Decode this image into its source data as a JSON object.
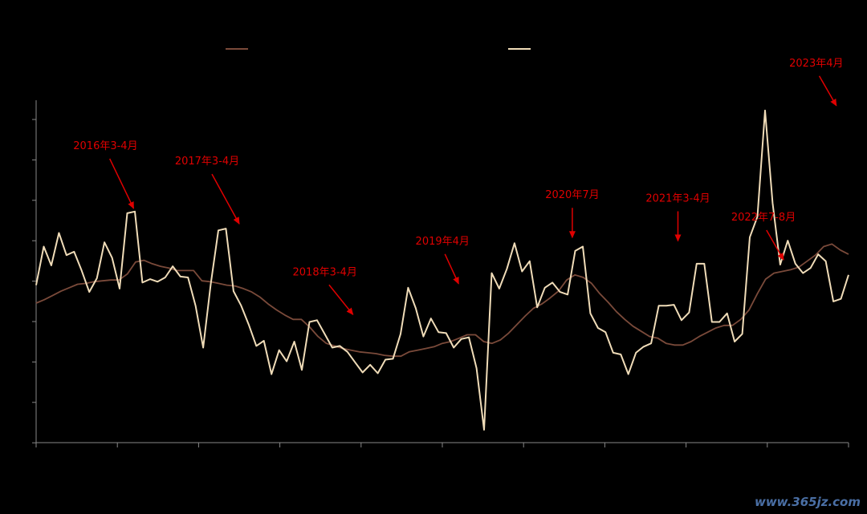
{
  "chart_data": {
    "type": "line",
    "title": "",
    "xlabel": "",
    "ylabel": "",
    "grid": false,
    "legend_position": "top",
    "xlim": [
      0,
      100
    ],
    "ylim": [
      0,
      100
    ],
    "series": [
      {
        "color": "#7a4a3a",
        "values": [
          40.75,
          41.75,
          43.0,
          44.25,
          45.25,
          46.25,
          46.5,
          47.0,
          47.25,
          47.5,
          47.5,
          49.25,
          52.75,
          53.25,
          52.25,
          51.5,
          51.0,
          50.25,
          50.25,
          50.25,
          47.25,
          47.0,
          46.5,
          46.0,
          45.75,
          45.0,
          44.0,
          42.5,
          40.5,
          38.75,
          37.25,
          36.0,
          36.0,
          33.75,
          31.0,
          29.0,
          28.25,
          27.5,
          27.0,
          26.5,
          26.25,
          26.0,
          25.5,
          25.25,
          25.25,
          26.5,
          27.0,
          27.5,
          28.0,
          29.0,
          29.5,
          30.5,
          31.5,
          31.5,
          29.5,
          29.0,
          30.0,
          32.0,
          34.5,
          37.0,
          39.25,
          40.5,
          42.25,
          44.25,
          47.5,
          49.0,
          48.25,
          46.5,
          43.5,
          41.0,
          38.25,
          36.0,
          34.0,
          32.5,
          31.0,
          30.5,
          29.0,
          28.5,
          28.5,
          29.5,
          31.0,
          32.25,
          33.5,
          34.25,
          34.25,
          36.0,
          38.75,
          43.5,
          47.75,
          49.5,
          50.0,
          50.5,
          51.25,
          53.0,
          54.75,
          57.25,
          58.0,
          56.25,
          55.0
        ]
      },
      {
        "color": "#f0dcb8",
        "values": [
          46.0,
          57.25,
          51.75,
          61.25,
          54.75,
          55.75,
          50.25,
          44.0,
          48.0,
          58.5,
          54.0,
          45.0,
          67.0,
          67.5,
          46.75,
          47.75,
          47.0,
          48.25,
          51.5,
          48.5,
          48.25,
          40.0,
          27.75,
          46.25,
          62.0,
          62.5,
          44.25,
          40.0,
          34.5,
          28.25,
          29.75,
          20.0,
          27.0,
          23.75,
          29.5,
          21.25,
          35.25,
          35.75,
          31.75,
          27.75,
          28.25,
          26.5,
          23.5,
          20.5,
          22.75,
          20.25,
          24.25,
          24.5,
          31.75,
          45.25,
          39.25,
          31.0,
          36.25,
          32.25,
          32.0,
          27.75,
          30.25,
          30.75,
          21.75,
          3.75,
          49.5,
          45.0,
          50.75,
          58.25,
          50.0,
          53.0,
          39.5,
          45.25,
          46.75,
          44.0,
          43.25,
          56.0,
          57.25,
          37.75,
          33.5,
          32.25,
          26.25,
          25.75,
          20.0,
          26.25,
          28.0,
          29.0,
          40.0,
          40.0,
          40.25,
          35.75,
          38.0,
          52.25,
          52.25,
          35.25,
          35.25,
          37.75,
          29.5,
          31.75,
          60.0,
          66.0,
          97.0,
          70.0,
          52.0,
          59.0,
          52.25,
          49.5,
          51.0,
          55.0,
          53.0,
          41.25,
          42.0,
          49.0
        ]
      }
    ],
    "annotations": [
      {
        "label": "2016年3-4月",
        "x": 12,
        "y": 67
      },
      {
        "label": "2017年3-4月",
        "x": 25,
        "y": 62.5
      },
      {
        "label": "2018年3-4月",
        "x": 39,
        "y": 36
      },
      {
        "label": "2019年4月",
        "x": 52,
        "y": 45
      },
      {
        "label": "2020年7月",
        "x": 66,
        "y": 58.5
      },
      {
        "label": "2021年3-4月",
        "x": 79,
        "y": 57.5
      },
      {
        "label": "2022年7-8月",
        "x": 92,
        "y": 52
      },
      {
        "label": "2023年4月",
        "x": 98.5,
        "y": 97
      }
    ]
  },
  "colors": {
    "annotation": "#e00000",
    "axis": "#888888",
    "background": "#000000"
  },
  "watermark": "www.365jz.com"
}
